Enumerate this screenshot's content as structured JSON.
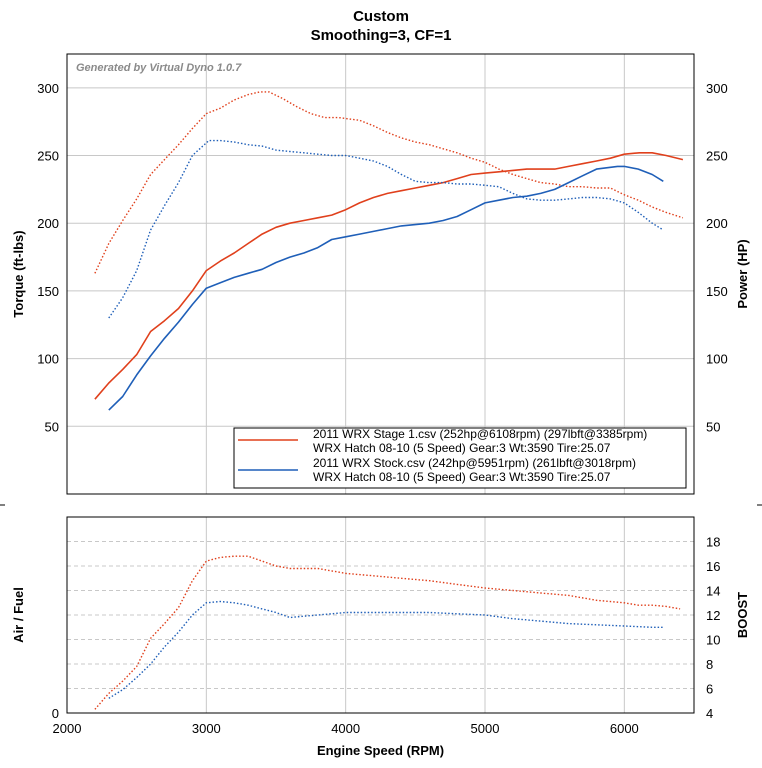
{
  "header": {
    "title": "Custom",
    "subtitle": "Smoothing=3, CF=1"
  },
  "watermark": "Generated by Virtual Dyno 1.0.7",
  "colors": {
    "stage1": "#e0401c",
    "stock": "#1f5fb8",
    "grid": "#c8c8c8"
  },
  "legend": [
    {
      "line1": "2011 WRX Stage 1.csv (252hp@6108rpm) (297lbft@3385rpm)",
      "line2": "WRX Hatch 08-10 (5 Speed) Gear:3 Wt:3590 Tire:25.07",
      "color": "#e0401c"
    },
    {
      "line1": "2011 WRX Stock.csv (242hp@5951rpm) (261lbft@3018rpm)",
      "line2": "WRX Hatch 08-10 (5 Speed) Gear:3 Wt:3590 Tire:25.07",
      "color": "#1f5fb8"
    }
  ],
  "chart_data": [
    {
      "type": "line",
      "title": "Custom",
      "subtitle": "Smoothing=3, CF=1",
      "ylabel": "Torque (ft-lbs)",
      "y2label": "Power (HP)",
      "xlim": [
        2000,
        6500
      ],
      "ylim": [
        0,
        325
      ],
      "y2lim": [
        0,
        325
      ],
      "x_ticks": [
        2000,
        3000,
        4000,
        5000,
        6000
      ],
      "y_ticks": [
        50,
        100,
        150,
        200,
        250,
        300
      ],
      "y2_ticks": [
        50,
        100,
        150,
        200,
        250,
        300
      ],
      "grid": true,
      "legend_position": "bottom-right",
      "series": [
        {
          "name": "2011 WRX Stage 1.csv (252hp@6108rpm) (297lbft@3385rpm)",
          "measure": "torque",
          "axis": "left",
          "style": "dotted",
          "color": "#e0401c",
          "x": [
            2200,
            2300,
            2400,
            2500,
            2600,
            2700,
            2800,
            2900,
            3000,
            3100,
            3200,
            3300,
            3385,
            3450,
            3550,
            3650,
            3750,
            3850,
            3950,
            4100,
            4200,
            4300,
            4400,
            4500,
            4600,
            4700,
            4800,
            4900,
            5000,
            5100,
            5200,
            5300,
            5400,
            5500,
            5600,
            5700,
            5800,
            5900,
            6000,
            6100,
            6200,
            6300,
            6420
          ],
          "y": [
            163,
            185,
            202,
            218,
            236,
            247,
            258,
            270,
            281,
            285,
            291,
            295,
            297,
            297,
            292,
            286,
            281,
            278,
            278,
            276,
            272,
            267,
            263,
            260,
            258,
            255,
            252,
            248,
            245,
            240,
            236,
            233,
            230,
            229,
            227,
            227,
            226,
            226,
            221,
            217,
            212,
            208,
            204
          ]
        },
        {
          "name": "2011 WRX Stage 1.csv (252hp@6108rpm) (297lbft@3385rpm)",
          "measure": "power",
          "axis": "right",
          "style": "solid",
          "color": "#e0401c",
          "x": [
            2200,
            2300,
            2400,
            2500,
            2600,
            2700,
            2800,
            2900,
            3000,
            3100,
            3200,
            3300,
            3400,
            3500,
            3600,
            3700,
            3800,
            3900,
            4000,
            4100,
            4200,
            4300,
            4400,
            4500,
            4600,
            4700,
            4800,
            4900,
            5000,
            5100,
            5200,
            5300,
            5400,
            5500,
            5600,
            5700,
            5800,
            5900,
            6000,
            6108,
            6200,
            6300,
            6420
          ],
          "y": [
            70,
            82,
            92,
            103,
            120,
            128,
            137,
            150,
            165,
            172,
            178,
            185,
            192,
            197,
            200,
            202,
            204,
            206,
            210,
            215,
            219,
            222,
            224,
            226,
            228,
            230,
            233,
            236,
            237,
            238,
            239,
            240,
            240,
            240,
            242,
            244,
            246,
            248,
            251,
            252,
            252,
            250,
            247
          ]
        },
        {
          "name": "2011 WRX Stock.csv (242hp@5951rpm) (261lbft@3018rpm)",
          "measure": "torque",
          "axis": "left",
          "style": "dotted",
          "color": "#1f5fb8",
          "x": [
            2300,
            2400,
            2500,
            2600,
            2700,
            2800,
            2900,
            3018,
            3100,
            3200,
            3300,
            3400,
            3500,
            3600,
            3700,
            3800,
            3900,
            4000,
            4100,
            4200,
            4300,
            4400,
            4500,
            4600,
            4700,
            4800,
            4900,
            5000,
            5100,
            5200,
            5300,
            5400,
            5500,
            5600,
            5700,
            5800,
            5900,
            6000,
            6100,
            6200,
            6280
          ],
          "y": [
            130,
            145,
            165,
            195,
            213,
            230,
            250,
            261,
            261,
            260,
            258,
            257,
            254,
            253,
            252,
            251,
            250,
            250,
            248,
            246,
            242,
            236,
            231,
            230,
            230,
            229,
            229,
            228,
            227,
            222,
            218,
            217,
            217,
            218,
            219,
            219,
            218,
            215,
            208,
            200,
            195
          ]
        },
        {
          "name": "2011 WRX Stock.csv (242hp@5951rpm) (261lbft@3018rpm)",
          "measure": "power",
          "axis": "right",
          "style": "solid",
          "color": "#1f5fb8",
          "x": [
            2300,
            2400,
            2500,
            2600,
            2700,
            2800,
            2900,
            3000,
            3100,
            3200,
            3300,
            3400,
            3500,
            3600,
            3700,
            3800,
            3900,
            4000,
            4100,
            4200,
            4300,
            4400,
            4500,
            4600,
            4700,
            4800,
            4900,
            5000,
            5100,
            5200,
            5300,
            5400,
            5500,
            5600,
            5700,
            5800,
            5951,
            6000,
            6100,
            6200,
            6280
          ],
          "y": [
            62,
            72,
            88,
            102,
            115,
            127,
            140,
            152,
            156,
            160,
            163,
            166,
            171,
            175,
            178,
            182,
            188,
            190,
            192,
            194,
            196,
            198,
            199,
            200,
            202,
            205,
            210,
            215,
            217,
            219,
            220,
            222,
            225,
            230,
            235,
            240,
            242,
            242,
            240,
            236,
            231
          ]
        }
      ]
    },
    {
      "type": "line",
      "xlabel": "Engine Speed (RPM)",
      "ylabel": "Air / Fuel",
      "y2label": "BOOST",
      "xlim": [
        2000,
        6500
      ],
      "ylim": [
        0,
        10
      ],
      "y2lim": [
        4,
        20
      ],
      "x_ticks": [
        2000,
        3000,
        4000,
        5000,
        6000
      ],
      "y_ticks": [
        0
      ],
      "y2_ticks": [
        4,
        6,
        8,
        10,
        12,
        14,
        16,
        18
      ],
      "grid": true,
      "series": [
        {
          "name": "2011 WRX Stage 1.csv (252hp@6108rpm) (297lbft@3385rpm)",
          "measure": "boost",
          "axis": "right",
          "style": "dotted",
          "color": "#e0401c",
          "x": [
            2200,
            2300,
            2400,
            2500,
            2600,
            2700,
            2800,
            2900,
            3000,
            3100,
            3200,
            3300,
            3400,
            3500,
            3600,
            3700,
            3800,
            3900,
            4000,
            4200,
            4400,
            4600,
            4800,
            5000,
            5200,
            5400,
            5600,
            5800,
            6000,
            6100,
            6200,
            6300,
            6400
          ],
          "y": [
            4.3,
            5.6,
            6.6,
            7.8,
            10.1,
            11.3,
            12.6,
            14.8,
            16.4,
            16.7,
            16.8,
            16.8,
            16.4,
            16.0,
            15.8,
            15.8,
            15.8,
            15.6,
            15.4,
            15.2,
            15.0,
            14.8,
            14.5,
            14.2,
            14.0,
            13.8,
            13.6,
            13.2,
            13.0,
            12.8,
            12.8,
            12.7,
            12.5
          ]
        },
        {
          "name": "2011 WRX Stock.csv (242hp@5951rpm) (261lbft@3018rpm)",
          "measure": "boost",
          "axis": "right",
          "style": "dotted",
          "color": "#1f5fb8",
          "x": [
            2300,
            2400,
            2500,
            2600,
            2700,
            2800,
            2900,
            3000,
            3100,
            3200,
            3300,
            3400,
            3500,
            3600,
            3700,
            3800,
            3900,
            4000,
            4200,
            4400,
            4600,
            4800,
            5000,
            5200,
            5400,
            5600,
            5800,
            6000,
            6200,
            6280
          ],
          "y": [
            5.2,
            5.9,
            6.9,
            8.0,
            9.4,
            10.6,
            12.0,
            13.0,
            13.1,
            13.0,
            12.8,
            12.5,
            12.2,
            11.8,
            11.9,
            12.0,
            12.1,
            12.2,
            12.2,
            12.2,
            12.2,
            12.1,
            12.0,
            11.7,
            11.5,
            11.3,
            11.2,
            11.1,
            11.0,
            11.0
          ]
        }
      ]
    }
  ]
}
